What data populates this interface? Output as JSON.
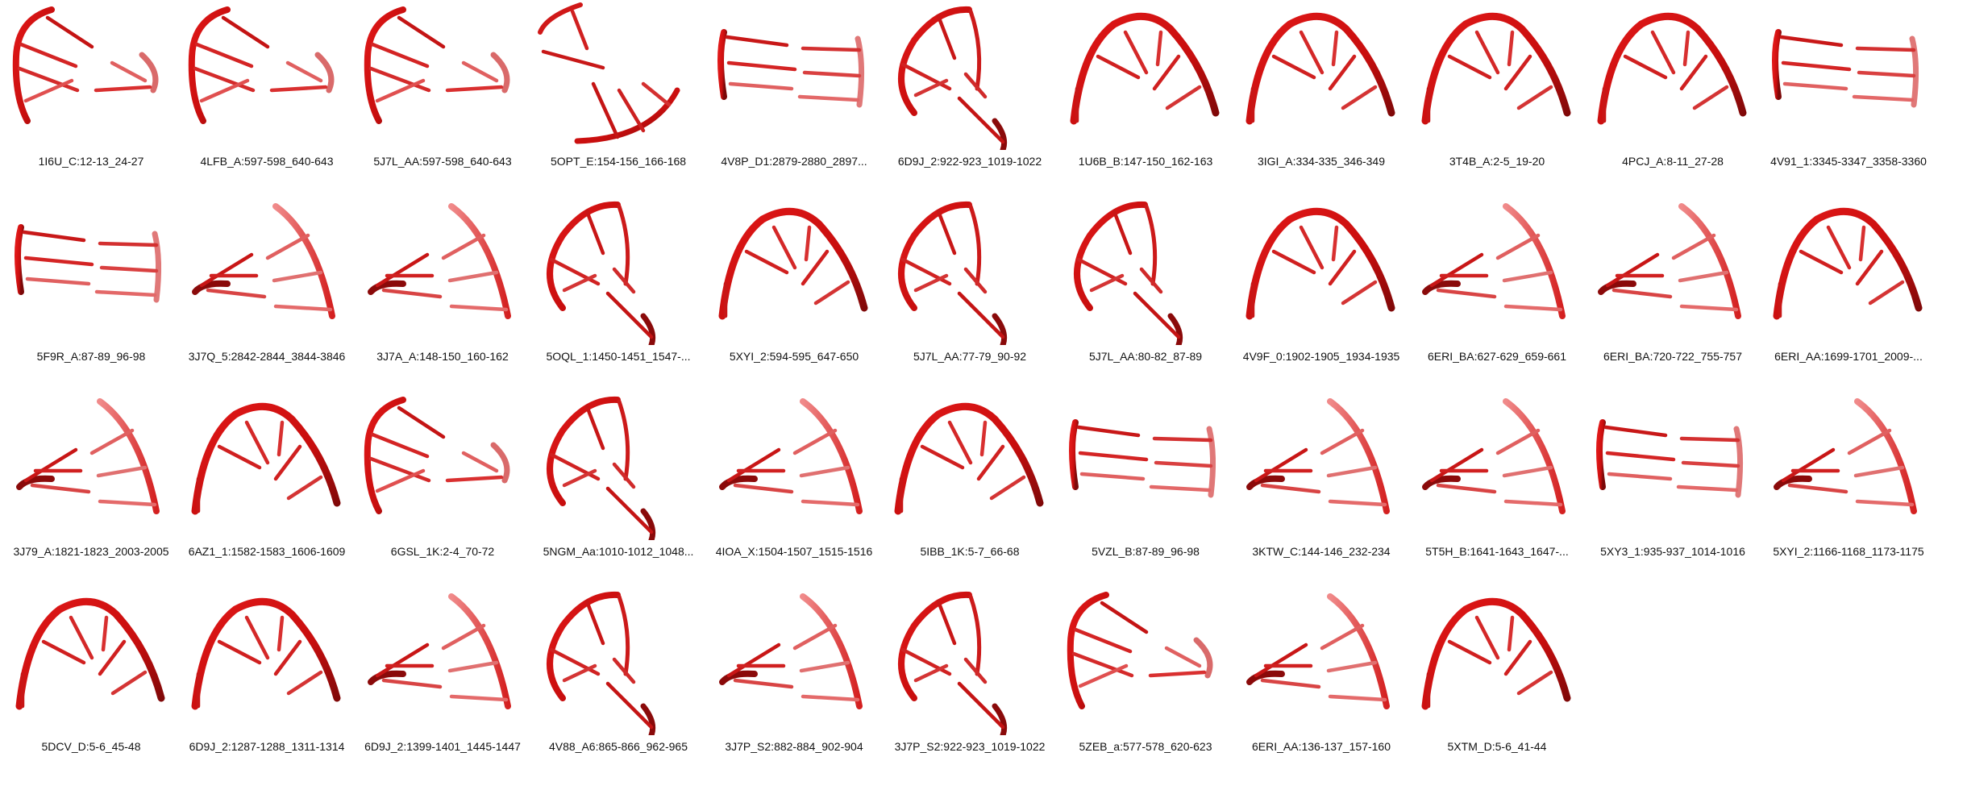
{
  "figure": {
    "structures": [
      {
        "label": "1I6U_C:12-13_24-27",
        "shape": "loop-left"
      },
      {
        "label": "4LFB_A:597-598_640-643",
        "shape": "loop-left"
      },
      {
        "label": "5J7L_AA:597-598_640-643",
        "shape": "loop-left"
      },
      {
        "label": "5OPT_E:154-156_166-168",
        "shape": "bottom-arc"
      },
      {
        "label": "4V8P_D1:2879-2880_2897...",
        "shape": "ladder"
      },
      {
        "label": "6D9J_2:922-923_1019-1022",
        "shape": "top-arc"
      },
      {
        "label": "1U6B_B:147-150_162-163",
        "shape": "big-arc"
      },
      {
        "label": "3IGI_A:334-335_346-349",
        "shape": "big-arc"
      },
      {
        "label": "3T4B_A:2-5_19-20",
        "shape": "big-arc"
      },
      {
        "label": "4PCJ_A:8-11_27-28",
        "shape": "big-arc"
      },
      {
        "label": "4V91_1:3345-3347_3358-3360",
        "shape": "ladder"
      },
      {
        "label": "5F9R_A:87-89_96-98",
        "shape": "ladder"
      },
      {
        "label": "3J7Q_5:2842-2844_3844-3846",
        "shape": "right-arc"
      },
      {
        "label": "3J7A_A:148-150_160-162",
        "shape": "right-arc"
      },
      {
        "label": "5OQL_1:1450-1451_1547-...",
        "shape": "top-arc"
      },
      {
        "label": "5XYI_2:594-595_647-650",
        "shape": "big-arc"
      },
      {
        "label": "5J7L_AA:77-79_90-92",
        "shape": "top-arc"
      },
      {
        "label": "5J7L_AA:80-82_87-89",
        "shape": "top-arc"
      },
      {
        "label": "4V9F_0:1902-1905_1934-1935",
        "shape": "big-arc"
      },
      {
        "label": "6ERI_BA:627-629_659-661",
        "shape": "right-arc"
      },
      {
        "label": "6ERI_BA:720-722_755-757",
        "shape": "right-arc"
      },
      {
        "label": "6ERI_AA:1699-1701_2009-...",
        "shape": "big-arc"
      },
      {
        "label": "3J79_A:1821-1823_2003-2005",
        "shape": "right-arc"
      },
      {
        "label": "6AZ1_1:1582-1583_1606-1609",
        "shape": "big-arc"
      },
      {
        "label": "6GSL_1K:2-4_70-72",
        "shape": "loop-left"
      },
      {
        "label": "5NGM_Aa:1010-1012_1048...",
        "shape": "top-arc"
      },
      {
        "label": "4IOA_X:1504-1507_1515-1516",
        "shape": "right-arc"
      },
      {
        "label": "5IBB_1K:5-7_66-68",
        "shape": "big-arc"
      },
      {
        "label": "5VZL_B:87-89_96-98",
        "shape": "ladder"
      },
      {
        "label": "3KTW_C:144-146_232-234",
        "shape": "right-arc"
      },
      {
        "label": "5T5H_B:1641-1643_1647-...",
        "shape": "right-arc"
      },
      {
        "label": "5XY3_1:935-937_1014-1016",
        "shape": "ladder"
      },
      {
        "label": "5XYI_2:1166-1168_1173-1175",
        "shape": "right-arc"
      },
      {
        "label": "5DCV_D:5-6_45-48",
        "shape": "big-arc"
      },
      {
        "label": "6D9J_2:1287-1288_1311-1314",
        "shape": "big-arc"
      },
      {
        "label": "6D9J_2:1399-1401_1445-1447",
        "shape": "right-arc"
      },
      {
        "label": "4V88_A6:865-866_962-965",
        "shape": "top-arc"
      },
      {
        "label": "3J7P_S2:882-884_902-904",
        "shape": "right-arc"
      },
      {
        "label": "3J7P_S2:922-923_1019-1022",
        "shape": "top-arc"
      },
      {
        "label": "5ZEB_a:577-578_620-623",
        "shape": "loop-left"
      },
      {
        "label": "6ERI_AA:136-137_157-160",
        "shape": "right-arc"
      },
      {
        "label": "5XTM_D:5-6_41-44",
        "shape": "big-arc"
      }
    ]
  }
}
